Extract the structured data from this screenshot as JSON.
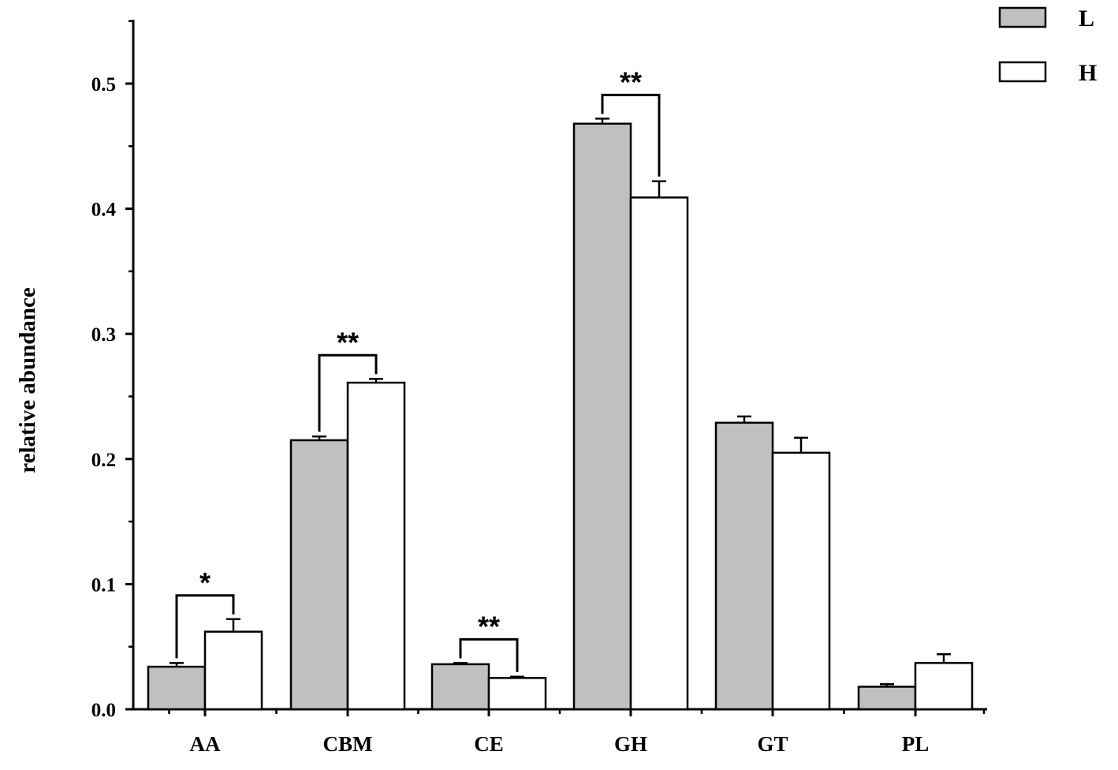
{
  "chart_data": {
    "type": "bar",
    "title": "",
    "xlabel": "",
    "ylabel": "relative abundance",
    "ylim": [
      0,
      0.55
    ],
    "yticks": [
      0.0,
      0.1,
      0.2,
      0.3,
      0.4,
      0.5
    ],
    "ytick_labels": [
      "0.0",
      "0.1",
      "0.2",
      "0.3",
      "0.4",
      "0.5"
    ],
    "categories": [
      "AA",
      "CBM",
      "CE",
      "GH",
      "GT",
      "PL"
    ],
    "series": [
      {
        "name": "L",
        "color": "#c0c0c0",
        "values": [
          0.034,
          0.215,
          0.036,
          0.468,
          0.229,
          0.018
        ],
        "errors": [
          0.003,
          0.003,
          0.001,
          0.004,
          0.005,
          0.002
        ]
      },
      {
        "name": "H",
        "color": "#ffffff",
        "values": [
          0.062,
          0.261,
          0.025,
          0.409,
          0.205,
          0.037
        ],
        "errors": [
          0.01,
          0.003,
          0.001,
          0.013,
          0.012,
          0.007
        ]
      }
    ],
    "significance": [
      {
        "category": "AA",
        "label": "*"
      },
      {
        "category": "CBM",
        "label": "**"
      },
      {
        "category": "CE",
        "label": "**"
      },
      {
        "category": "GH",
        "label": "**"
      }
    ],
    "legend_position": "top-right",
    "grid": false
  }
}
